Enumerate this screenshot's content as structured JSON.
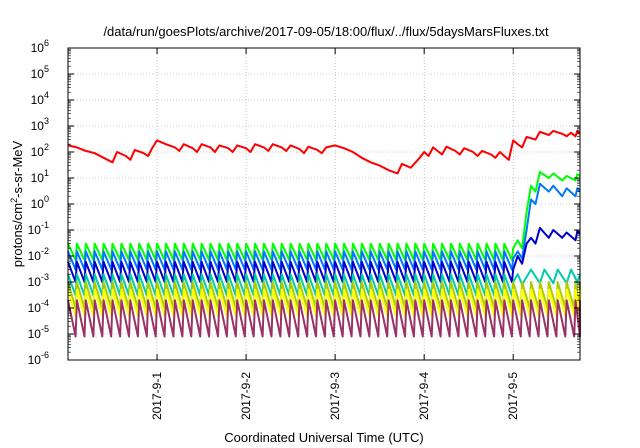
{
  "chart_data": {
    "type": "line",
    "title": "/data/run/goesPlots/archive/2017-09-05/18:00/flux/../flux/5daysMarsFluxes.txt",
    "xlabel": "Coordinated Universal Time (UTC)",
    "ylabel": "protons/cm2-s-sr-MeV",
    "ylabel_parts": {
      "pre": "protons/cm",
      "sup": "2",
      "post": "-s-sr-MeV"
    },
    "yscale": "log",
    "ylim_exponents": [
      -6,
      6
    ],
    "xlim_days": [
      0,
      5.75
    ],
    "grid": true,
    "legend": "none",
    "x_ticks": [
      {
        "label": "2017-9-1",
        "day": 1
      },
      {
        "label": "2017-9-2",
        "day": 2
      },
      {
        "label": "2017-9-3",
        "day": 3
      },
      {
        "label": "2017-9-4",
        "day": 4
      },
      {
        "label": "2017-9-5",
        "day": 5
      }
    ],
    "y_ticks": [
      {
        "base": "10",
        "exp": "6"
      },
      {
        "base": "10",
        "exp": "5"
      },
      {
        "base": "10",
        "exp": "4"
      },
      {
        "base": "10",
        "exp": "3"
      },
      {
        "base": "10",
        "exp": "2"
      },
      {
        "base": "10",
        "exp": "1"
      },
      {
        "base": "10",
        "exp": "0"
      },
      {
        "base": "10",
        "exp": "-1"
      },
      {
        "base": "10",
        "exp": "-2"
      },
      {
        "base": "10",
        "exp": "-3"
      },
      {
        "base": "10",
        "exp": "-4"
      },
      {
        "base": "10",
        "exp": "-5"
      },
      {
        "base": "10",
        "exp": "-6"
      }
    ],
    "series": [
      {
        "color": "#ff0000",
        "points": [
          [
            0,
            180
          ],
          [
            0.1,
            150
          ],
          [
            0.2,
            110
          ],
          [
            0.3,
            90
          ],
          [
            0.4,
            60
          ],
          [
            0.5,
            40
          ],
          [
            0.55,
            100
          ],
          [
            0.65,
            70
          ],
          [
            0.7,
            50
          ],
          [
            0.75,
            120
          ],
          [
            0.85,
            90
          ],
          [
            0.9,
            70
          ],
          [
            0.95,
            150
          ],
          [
            1.0,
            280
          ],
          [
            1.1,
            200
          ],
          [
            1.2,
            150
          ],
          [
            1.25,
            110
          ],
          [
            1.3,
            200
          ],
          [
            1.4,
            140
          ],
          [
            1.45,
            100
          ],
          [
            1.5,
            200
          ],
          [
            1.6,
            150
          ],
          [
            1.65,
            100
          ],
          [
            1.7,
            180
          ],
          [
            1.8,
            140
          ],
          [
            1.85,
            100
          ],
          [
            1.9,
            180
          ],
          [
            2.0,
            140
          ],
          [
            2.05,
            100
          ],
          [
            2.1,
            200
          ],
          [
            2.2,
            150
          ],
          [
            2.25,
            110
          ],
          [
            2.3,
            200
          ],
          [
            2.4,
            150
          ],
          [
            2.45,
            110
          ],
          [
            2.5,
            180
          ],
          [
            2.6,
            130
          ],
          [
            2.65,
            90
          ],
          [
            2.7,
            160
          ],
          [
            2.8,
            120
          ],
          [
            2.85,
            90
          ],
          [
            2.9,
            150
          ],
          [
            3.0,
            180
          ],
          [
            3.1,
            140
          ],
          [
            3.2,
            100
          ],
          [
            3.3,
            60
          ],
          [
            3.4,
            40
          ],
          [
            3.5,
            30
          ],
          [
            3.6,
            20
          ],
          [
            3.7,
            15
          ],
          [
            3.75,
            35
          ],
          [
            3.85,
            25
          ],
          [
            3.95,
            60
          ],
          [
            4.0,
            100
          ],
          [
            4.05,
            70
          ],
          [
            4.1,
            150
          ],
          [
            4.15,
            110
          ],
          [
            4.2,
            80
          ],
          [
            4.25,
            160
          ],
          [
            4.35,
            110
          ],
          [
            4.4,
            80
          ],
          [
            4.45,
            140
          ],
          [
            4.55,
            100
          ],
          [
            4.6,
            70
          ],
          [
            4.65,
            110
          ],
          [
            4.75,
            80
          ],
          [
            4.8,
            60
          ],
          [
            4.85,
            100
          ],
          [
            4.9,
            70
          ],
          [
            4.95,
            50
          ],
          [
            5.0,
            280
          ],
          [
            5.05,
            200
          ],
          [
            5.1,
            150
          ],
          [
            5.15,
            380
          ],
          [
            5.25,
            300
          ],
          [
            5.3,
            600
          ],
          [
            5.4,
            450
          ],
          [
            5.45,
            650
          ],
          [
            5.55,
            500
          ],
          [
            5.6,
            400
          ],
          [
            5.65,
            550
          ],
          [
            5.7,
            400
          ],
          [
            5.72,
            650
          ],
          [
            5.75,
            500
          ]
        ]
      },
      {
        "color": "#00ff00",
        "base_peak": 0.03,
        "base_trough": 0.007,
        "late": [
          [
            5.0,
            0.02
          ],
          [
            5.05,
            0.04
          ],
          [
            5.1,
            0.02
          ],
          [
            5.15,
            0.5
          ],
          [
            5.2,
            5
          ],
          [
            5.25,
            3
          ],
          [
            5.3,
            17
          ],
          [
            5.4,
            10
          ],
          [
            5.45,
            15
          ],
          [
            5.55,
            8
          ],
          [
            5.6,
            12
          ],
          [
            5.7,
            8
          ],
          [
            5.72,
            14
          ],
          [
            5.75,
            12
          ]
        ]
      },
      {
        "color": "#0077ff",
        "base_peak": 0.015,
        "base_trough": 0.003,
        "late": [
          [
            5.0,
            0.008
          ],
          [
            5.05,
            0.015
          ],
          [
            5.1,
            0.008
          ],
          [
            5.15,
            0.1
          ],
          [
            5.2,
            1.5
          ],
          [
            5.25,
            1
          ],
          [
            5.3,
            6
          ],
          [
            5.4,
            3
          ],
          [
            5.45,
            5
          ],
          [
            5.55,
            2
          ],
          [
            5.6,
            4
          ],
          [
            5.7,
            2
          ],
          [
            5.72,
            4
          ],
          [
            5.75,
            3
          ]
        ]
      },
      {
        "color": "#0000cc",
        "base_peak": 0.006,
        "base_trough": 0.001,
        "late": [
          [
            5.0,
            0.003
          ],
          [
            5.05,
            0.01
          ],
          [
            5.1,
            0.005
          ],
          [
            5.15,
            0.03
          ],
          [
            5.2,
            0.05
          ],
          [
            5.25,
            0.03
          ],
          [
            5.3,
            0.12
          ],
          [
            5.4,
            0.05
          ],
          [
            5.45,
            0.1
          ],
          [
            5.55,
            0.05
          ],
          [
            5.6,
            0.08
          ],
          [
            5.7,
            0.04
          ],
          [
            5.72,
            0.09
          ],
          [
            5.75,
            0.07
          ]
        ]
      },
      {
        "color": "#00ccaa",
        "base_peak": 0.002,
        "base_trough": 0.0003,
        "late": [
          [
            5.0,
            0.001
          ],
          [
            5.05,
            0.002
          ],
          [
            5.1,
            0.0008
          ],
          [
            5.2,
            0.003
          ],
          [
            5.3,
            0.0009
          ],
          [
            5.35,
            0.003
          ],
          [
            5.45,
            0.0009
          ],
          [
            5.5,
            0.003
          ],
          [
            5.6,
            0.0009
          ],
          [
            5.65,
            0.003
          ],
          [
            5.72,
            0.001
          ],
          [
            5.75,
            0.002
          ]
        ]
      },
      {
        "color": "#aacc00",
        "base_peak": 0.001,
        "base_trough": 0.0001,
        "late": []
      },
      {
        "color": "#ffff00",
        "base_peak": 0.0005,
        "base_trough": 5e-05,
        "late": []
      },
      {
        "color": "#993366",
        "base_peak": 0.0002,
        "base_trough": 8e-06,
        "late": []
      }
    ]
  }
}
